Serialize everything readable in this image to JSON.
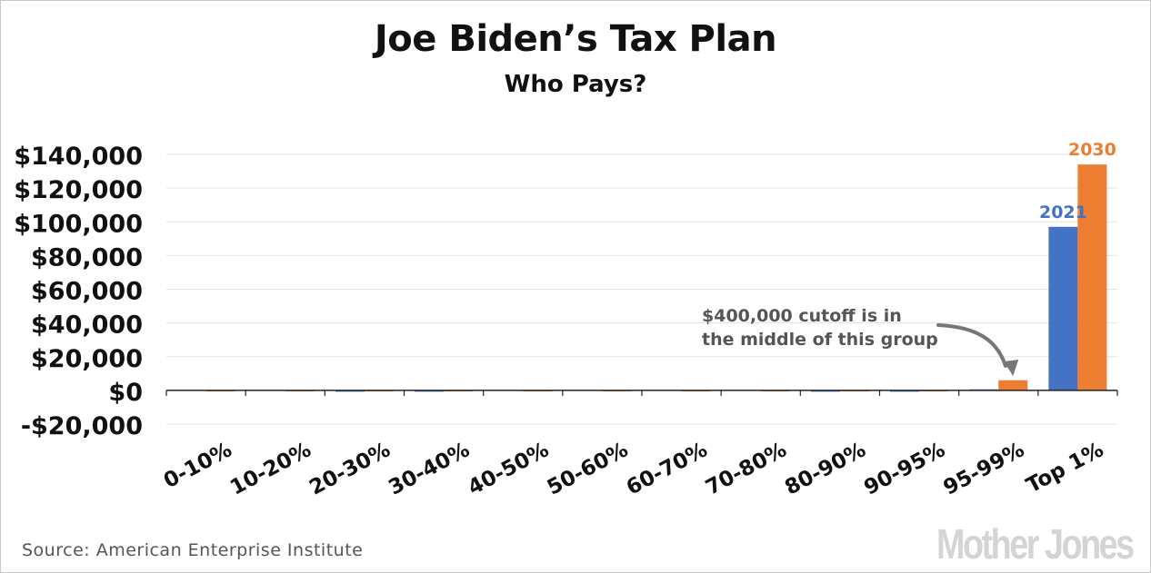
{
  "chart_data": {
    "type": "bar",
    "title": "Joe Biden’s Tax Plan",
    "subtitle": "Who Pays?",
    "xlabel": "",
    "ylabel": "",
    "categories": [
      "0-10%",
      "10-20%",
      "20-30%",
      "30-40%",
      "40-50%",
      "50-60%",
      "60-70%",
      "70-80%",
      "80-90%",
      "90-95%",
      "95-99%",
      "Top 1%"
    ],
    "series": [
      {
        "name": "2021",
        "color": "#4472c4",
        "values": [
          0,
          0,
          -300,
          -300,
          0,
          0,
          0,
          0,
          -300,
          -300,
          600,
          97000
        ]
      },
      {
        "name": "2030",
        "color": "#ed7d31",
        "values": [
          200,
          200,
          200,
          200,
          200,
          200,
          200,
          200,
          200,
          200,
          6000,
          134000
        ]
      }
    ],
    "ylim": [
      -20000,
      140000
    ],
    "yticks": [
      -20000,
      0,
      20000,
      40000,
      60000,
      80000,
      100000,
      120000,
      140000
    ],
    "ytick_labels": [
      "-$20,000",
      "$0",
      "$20,000",
      "$40,000",
      "$60,000",
      "$80,000",
      "$100,000",
      "$120,000",
      "$140,000"
    ],
    "grid": true,
    "legend": "direct labels above Top 1% bars",
    "annotation": {
      "lines": [
        "$400,000 cutoff is in",
        "the middle of this group"
      ],
      "target_category": "95-99%"
    }
  },
  "source": "Source: American Enterprise Institute",
  "logo": "Mother Jones"
}
